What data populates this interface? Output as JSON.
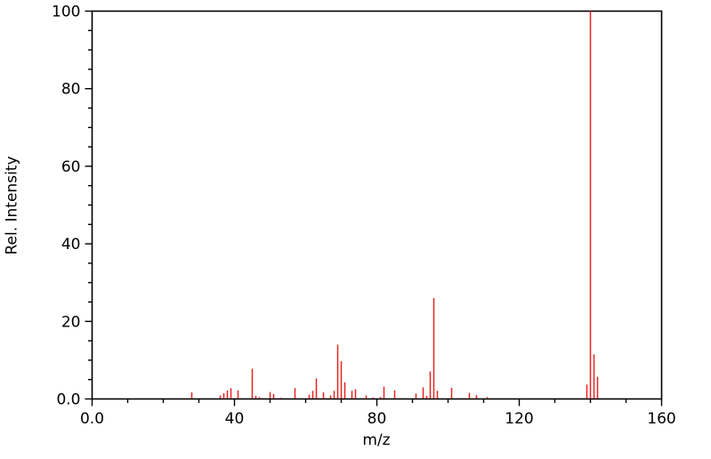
{
  "figure": {
    "background_color": "#ffffff"
  },
  "chart_data": {
    "type": "bar",
    "subtype": "mass-spectrum-stick-plot",
    "title": "",
    "xlabel": "m/z",
    "ylabel": "Rel. Intensity",
    "xlim": [
      0,
      160
    ],
    "ylim": [
      0,
      100
    ],
    "grid": false,
    "legend": false,
    "x_major_ticks": [
      {
        "value": 0,
        "label": "0.0"
      },
      {
        "value": 40,
        "label": "40"
      },
      {
        "value": 80,
        "label": "80"
      },
      {
        "value": 120,
        "label": "120"
      },
      {
        "value": 160,
        "label": "160"
      }
    ],
    "x_minor_tick_step": 10,
    "y_major_ticks": [
      {
        "value": 0,
        "label": "0.0"
      },
      {
        "value": 20,
        "label": "20"
      },
      {
        "value": 40,
        "label": "40"
      },
      {
        "value": 60,
        "label": "60"
      },
      {
        "value": 80,
        "label": "80"
      },
      {
        "value": 100,
        "label": "100"
      }
    ],
    "y_minor_tick_step": 5,
    "peak_color": "#e82222",
    "axis_color": "#000000",
    "tick_label_color": "#000000",
    "peaks": {
      "mz": [
        28,
        36,
        37,
        38,
        39,
        41,
        45,
        46,
        47,
        50,
        51,
        53,
        57,
        61,
        62,
        63,
        65,
        67,
        68,
        69,
        70,
        71,
        73,
        74,
        77,
        79,
        81,
        82,
        85,
        91,
        93,
        94,
        95,
        96,
        97,
        101,
        106,
        108,
        111,
        139,
        140,
        141,
        142
      ],
      "rel_intensity": [
        1.7,
        0.9,
        1.5,
        2.2,
        2.8,
        2.2,
        7.8,
        0.8,
        0.5,
        1.8,
        1.3,
        0.3,
        2.8,
        1.1,
        2.1,
        5.3,
        1.7,
        0.9,
        2.1,
        14.0,
        9.7,
        4.3,
        2.1,
        2.5,
        0.9,
        0.4,
        0.5,
        3.2,
        2.2,
        1.4,
        3.0,
        0.8,
        7.1,
        26.0,
        2.1,
        2.9,
        1.6,
        1.0,
        0.5,
        3.7,
        100.0,
        11.5,
        5.7
      ]
    }
  }
}
